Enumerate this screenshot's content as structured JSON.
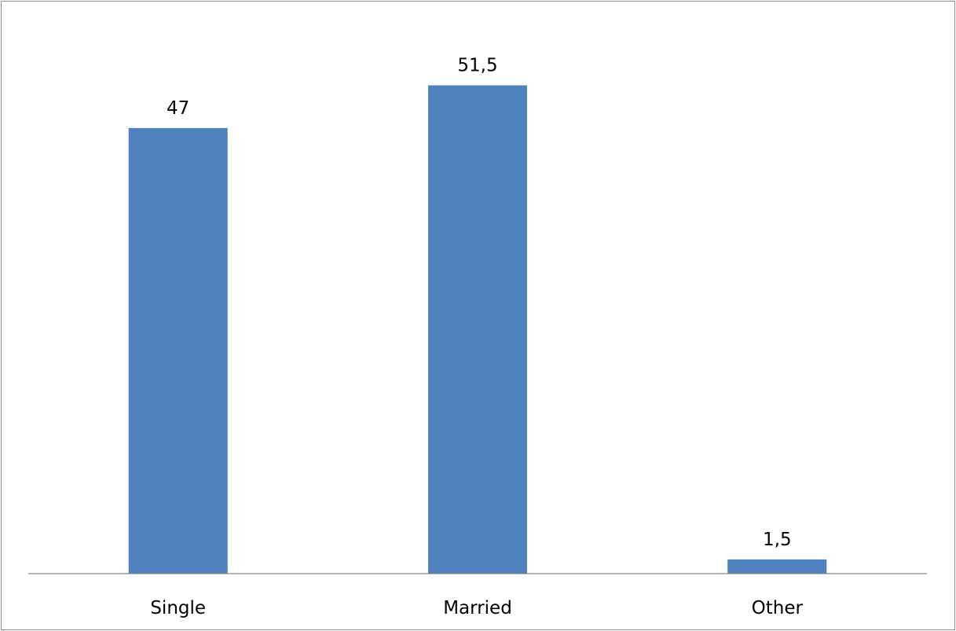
{
  "chart_data": {
    "type": "bar",
    "categories": [
      "Single",
      "Married",
      "Other"
    ],
    "values": [
      47,
      51.5,
      1.5
    ],
    "value_labels": [
      "47",
      "51,5",
      "1,5"
    ],
    "ylim": [
      0,
      60
    ],
    "title": "",
    "xlabel": "",
    "ylabel": "",
    "grid": false,
    "legend": "none",
    "bar_color": "#4f81bd",
    "axis_color": "#868686"
  }
}
